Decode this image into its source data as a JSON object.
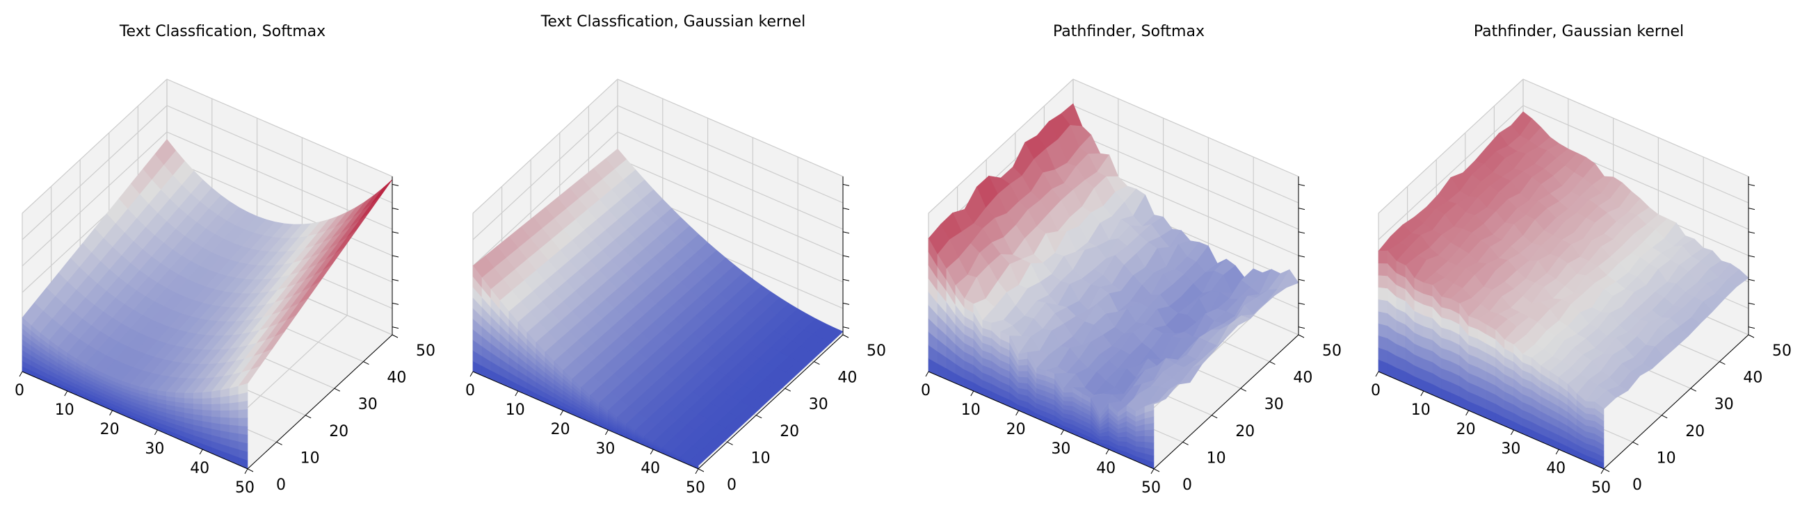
{
  "colormap": {
    "name": "coolwarm",
    "low": "#3b4cc0",
    "mid": "#dddddd",
    "high": "#b40426"
  },
  "chart_data": [
    {
      "type": "surface3d",
      "title": "Text Classfication, Softmax",
      "x_ticks": [
        "0",
        "10",
        "20",
        "30",
        "40",
        "50"
      ],
      "y_ticks": [
        "0",
        "10",
        "20",
        "30",
        "40",
        "50"
      ],
      "z_ticks": [
        "",
        "",
        "",
        "",
        "",
        "",
        ""
      ],
      "x_range": [
        0,
        50
      ],
      "y_range": [
        0,
        50
      ],
      "surface": "softmax_text",
      "z_normalized_min": 0.0,
      "z_normalized_max": 1.0
    },
    {
      "type": "surface3d",
      "title": "Text Classfication, Gaussian kernel",
      "x_ticks": [
        "0",
        "10",
        "20",
        "30",
        "40",
        "50"
      ],
      "y_ticks": [
        "0",
        "10",
        "20",
        "30",
        "40",
        "50"
      ],
      "z_ticks": [
        "",
        "",
        "",
        "",
        "",
        "",
        ""
      ],
      "x_range": [
        0,
        50
      ],
      "y_range": [
        0,
        50
      ],
      "surface": "gaussian_text",
      "z_normalized_min": 0.0,
      "z_normalized_max": 1.0
    },
    {
      "type": "surface3d",
      "title": "Pathfinder, Softmax",
      "x_ticks": [
        "0",
        "10",
        "20",
        "30",
        "40",
        "50"
      ],
      "y_ticks": [
        "0",
        "10",
        "20",
        "30",
        "40",
        "50"
      ],
      "z_ticks": [
        "",
        "",
        "",
        "",
        "",
        "",
        ""
      ],
      "x_range": [
        0,
        50
      ],
      "y_range": [
        0,
        50
      ],
      "surface": "softmax_path",
      "z_normalized_min": 0.0,
      "z_normalized_max": 1.0
    },
    {
      "type": "surface3d",
      "title": "Pathfinder, Gaussian kernel",
      "x_ticks": [
        "0",
        "10",
        "20",
        "30",
        "40",
        "50"
      ],
      "y_ticks": [
        "0",
        "10",
        "20",
        "30",
        "40",
        "50"
      ],
      "z_ticks": [
        "",
        "",
        "",
        "",
        "",
        "",
        ""
      ],
      "x_range": [
        0,
        50
      ],
      "y_range": [
        0,
        50
      ],
      "surface": "gaussian_path",
      "z_normalized_min": 0.0,
      "z_normalized_max": 1.0
    }
  ]
}
